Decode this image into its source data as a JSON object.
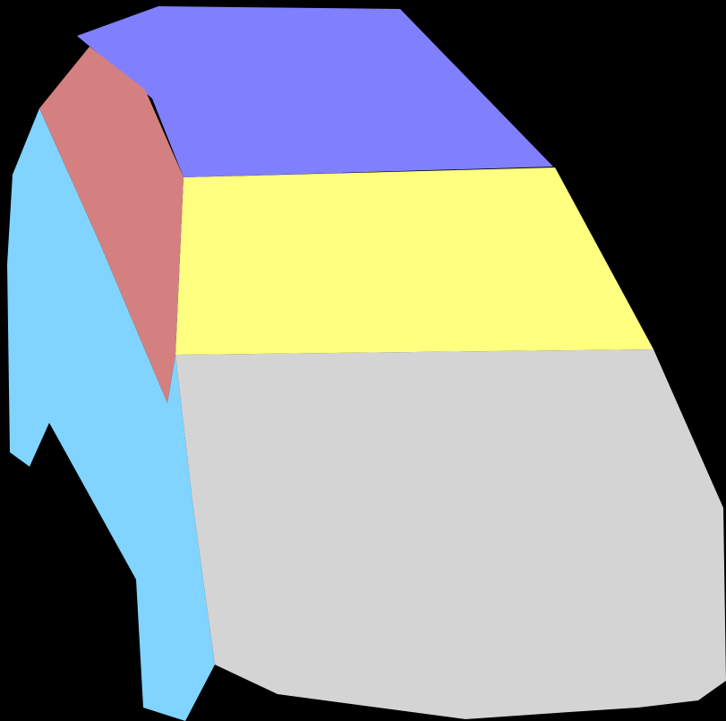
{
  "background_color": "#000000",
  "segments": [
    {
      "part": "roof",
      "color": "#8080FF"
    },
    {
      "part": "windshield",
      "color": "#FFFF80"
    },
    {
      "part": "hood",
      "color": "#D4D4D4"
    },
    {
      "part": "side-window",
      "color": "#D48080"
    },
    {
      "part": "side-body",
      "color": "#80D4FF"
    }
  ]
}
